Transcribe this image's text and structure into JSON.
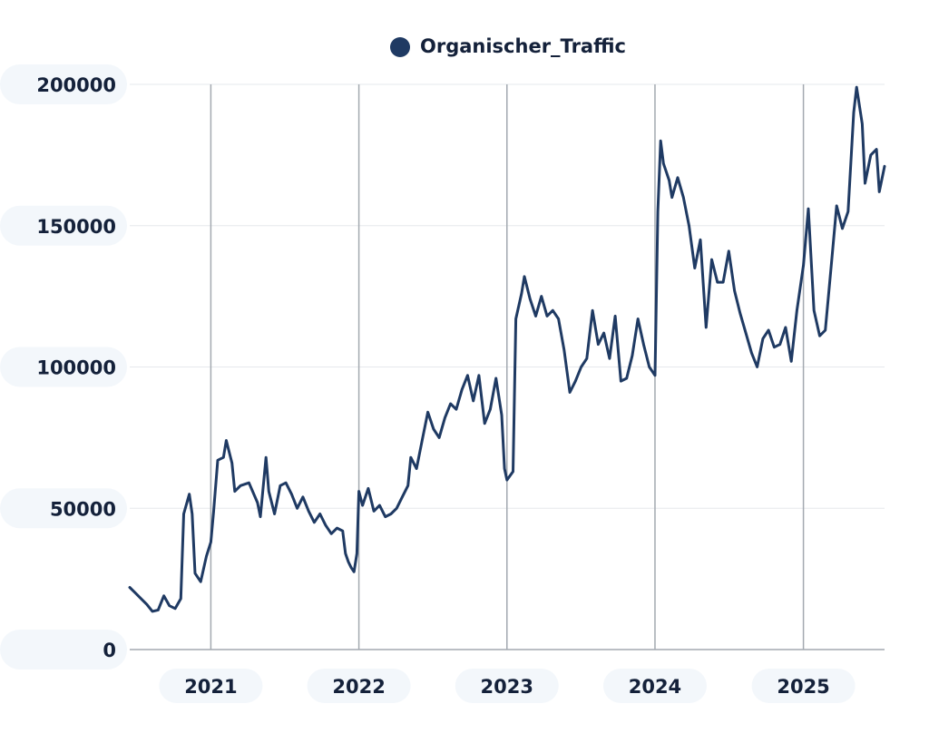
{
  "chart_data": {
    "type": "line",
    "legend_position": "top-center",
    "grid": true,
    "ylim": [
      0,
      200000
    ],
    "y_ticks": [
      0,
      50000,
      100000,
      150000,
      200000
    ],
    "y_tick_labels": [
      "0",
      "50000",
      "100000",
      "150000",
      "200000"
    ],
    "x_range": [
      "2020-06-15",
      "2025-07-20"
    ],
    "x_ticks": [
      {
        "date": "2021-01-01",
        "label": "2021"
      },
      {
        "date": "2022-01-01",
        "label": "2022"
      },
      {
        "date": "2023-01-01",
        "label": "2023"
      },
      {
        "date": "2024-01-01",
        "label": "2024"
      },
      {
        "date": "2025-01-01",
        "label": "2025"
      }
    ],
    "colors": {
      "series": "#1f3a63",
      "major_grid": "#a3a9b0",
      "minor_grid": "#e6e8ec",
      "label_bg": "#f3f7fb"
    },
    "series": [
      {
        "name": "Organischer_Traffic",
        "points": [
          [
            "2020-06-15",
            22000
          ],
          [
            "2020-06-29",
            20000
          ],
          [
            "2020-07-13",
            18000
          ],
          [
            "2020-07-27",
            16000
          ],
          [
            "2020-08-10",
            13500
          ],
          [
            "2020-08-24",
            14000
          ],
          [
            "2020-09-07",
            19000
          ],
          [
            "2020-09-21",
            15500
          ],
          [
            "2020-10-05",
            14500
          ],
          [
            "2020-10-19",
            18000
          ],
          [
            "2020-10-26",
            48000
          ],
          [
            "2020-11-09",
            55000
          ],
          [
            "2020-11-16",
            48000
          ],
          [
            "2020-11-23",
            27000
          ],
          [
            "2020-12-07",
            24000
          ],
          [
            "2020-12-21",
            33000
          ],
          [
            "2021-01-01",
            38000
          ],
          [
            "2021-01-08",
            49000
          ],
          [
            "2021-01-18",
            67000
          ],
          [
            "2021-02-01",
            68000
          ],
          [
            "2021-02-08",
            74000
          ],
          [
            "2021-02-22",
            66000
          ],
          [
            "2021-03-01",
            56000
          ],
          [
            "2021-03-15",
            58000
          ],
          [
            "2021-04-05",
            59000
          ],
          [
            "2021-04-26",
            52000
          ],
          [
            "2021-05-03",
            47000
          ],
          [
            "2021-05-17",
            68000
          ],
          [
            "2021-05-24",
            56000
          ],
          [
            "2021-06-07",
            48000
          ],
          [
            "2021-06-21",
            58000
          ],
          [
            "2021-07-05",
            59000
          ],
          [
            "2021-07-19",
            55000
          ],
          [
            "2021-08-02",
            50000
          ],
          [
            "2021-08-16",
            54000
          ],
          [
            "2021-08-30",
            49000
          ],
          [
            "2021-09-13",
            45000
          ],
          [
            "2021-09-27",
            48000
          ],
          [
            "2021-10-11",
            44000
          ],
          [
            "2021-10-25",
            41000
          ],
          [
            "2021-11-08",
            43000
          ],
          [
            "2021-11-22",
            42000
          ],
          [
            "2021-11-29",
            34000
          ],
          [
            "2021-12-06",
            31000
          ],
          [
            "2021-12-13",
            29000
          ],
          [
            "2021-12-20",
            27500
          ],
          [
            "2021-12-27",
            34000
          ],
          [
            "2022-01-01",
            56000
          ],
          [
            "2022-01-10",
            51000
          ],
          [
            "2022-01-24",
            57000
          ],
          [
            "2022-02-07",
            49000
          ],
          [
            "2022-02-21",
            51000
          ],
          [
            "2022-03-07",
            47000
          ],
          [
            "2022-03-21",
            48000
          ],
          [
            "2022-04-04",
            50000
          ],
          [
            "2022-04-18",
            54000
          ],
          [
            "2022-05-02",
            58000
          ],
          [
            "2022-05-09",
            68000
          ],
          [
            "2022-05-23",
            64000
          ],
          [
            "2022-06-06",
            74000
          ],
          [
            "2022-06-20",
            84000
          ],
          [
            "2022-07-04",
            78000
          ],
          [
            "2022-07-18",
            75000
          ],
          [
            "2022-08-01",
            82000
          ],
          [
            "2022-08-15",
            87000
          ],
          [
            "2022-08-29",
            85000
          ],
          [
            "2022-09-12",
            92000
          ],
          [
            "2022-09-26",
            97000
          ],
          [
            "2022-10-10",
            88000
          ],
          [
            "2022-10-24",
            97000
          ],
          [
            "2022-11-07",
            80000
          ],
          [
            "2022-11-21",
            85000
          ],
          [
            "2022-12-05",
            96000
          ],
          [
            "2022-12-19",
            83000
          ],
          [
            "2022-12-26",
            64000
          ],
          [
            "2023-01-01",
            60000
          ],
          [
            "2023-01-16",
            63000
          ],
          [
            "2023-01-23",
            117000
          ],
          [
            "2023-02-06",
            126000
          ],
          [
            "2023-02-13",
            132000
          ],
          [
            "2023-02-27",
            124000
          ],
          [
            "2023-03-13",
            118000
          ],
          [
            "2023-03-27",
            125000
          ],
          [
            "2023-04-10",
            118000
          ],
          [
            "2023-04-24",
            120000
          ],
          [
            "2023-05-08",
            117000
          ],
          [
            "2023-05-22",
            106000
          ],
          [
            "2023-06-05",
            91000
          ],
          [
            "2023-06-19",
            95000
          ],
          [
            "2023-07-03",
            100000
          ],
          [
            "2023-07-17",
            103000
          ],
          [
            "2023-07-31",
            120000
          ],
          [
            "2023-08-14",
            108000
          ],
          [
            "2023-08-28",
            112000
          ],
          [
            "2023-09-11",
            103000
          ],
          [
            "2023-09-25",
            118000
          ],
          [
            "2023-10-09",
            95000
          ],
          [
            "2023-10-23",
            96000
          ],
          [
            "2023-11-06",
            104000
          ],
          [
            "2023-11-20",
            117000
          ],
          [
            "2023-12-04",
            108000
          ],
          [
            "2023-12-18",
            100000
          ],
          [
            "2024-01-01",
            97000
          ],
          [
            "2024-01-08",
            155000
          ],
          [
            "2024-01-15",
            180000
          ],
          [
            "2024-01-22",
            172000
          ],
          [
            "2024-02-05",
            166000
          ],
          [
            "2024-02-12",
            160000
          ],
          [
            "2024-02-26",
            167000
          ],
          [
            "2024-03-11",
            160000
          ],
          [
            "2024-03-25",
            150000
          ],
          [
            "2024-04-08",
            135000
          ],
          [
            "2024-04-22",
            145000
          ],
          [
            "2024-05-06",
            114000
          ],
          [
            "2024-05-20",
            138000
          ],
          [
            "2024-06-03",
            130000
          ],
          [
            "2024-06-17",
            130000
          ],
          [
            "2024-07-01",
            141000
          ],
          [
            "2024-07-15",
            127000
          ],
          [
            "2024-07-29",
            119000
          ],
          [
            "2024-08-12",
            112000
          ],
          [
            "2024-08-26",
            105000
          ],
          [
            "2024-09-09",
            100000
          ],
          [
            "2024-09-23",
            110000
          ],
          [
            "2024-10-07",
            113000
          ],
          [
            "2024-10-21",
            107000
          ],
          [
            "2024-11-04",
            108000
          ],
          [
            "2024-11-18",
            114000
          ],
          [
            "2024-12-02",
            102000
          ],
          [
            "2024-12-16",
            120000
          ],
          [
            "2025-01-01",
            136000
          ],
          [
            "2025-01-13",
            156000
          ],
          [
            "2025-01-27",
            120000
          ],
          [
            "2025-02-10",
            111000
          ],
          [
            "2025-02-24",
            113000
          ],
          [
            "2025-03-10",
            135000
          ],
          [
            "2025-03-24",
            157000
          ],
          [
            "2025-04-07",
            149000
          ],
          [
            "2025-04-21",
            155000
          ],
          [
            "2025-05-05",
            190000
          ],
          [
            "2025-05-12",
            199000
          ],
          [
            "2025-05-26",
            186000
          ],
          [
            "2025-06-02",
            165000
          ],
          [
            "2025-06-16",
            175000
          ],
          [
            "2025-06-30",
            177000
          ],
          [
            "2025-07-07",
            162000
          ],
          [
            "2025-07-20",
            171000
          ]
        ]
      }
    ]
  }
}
